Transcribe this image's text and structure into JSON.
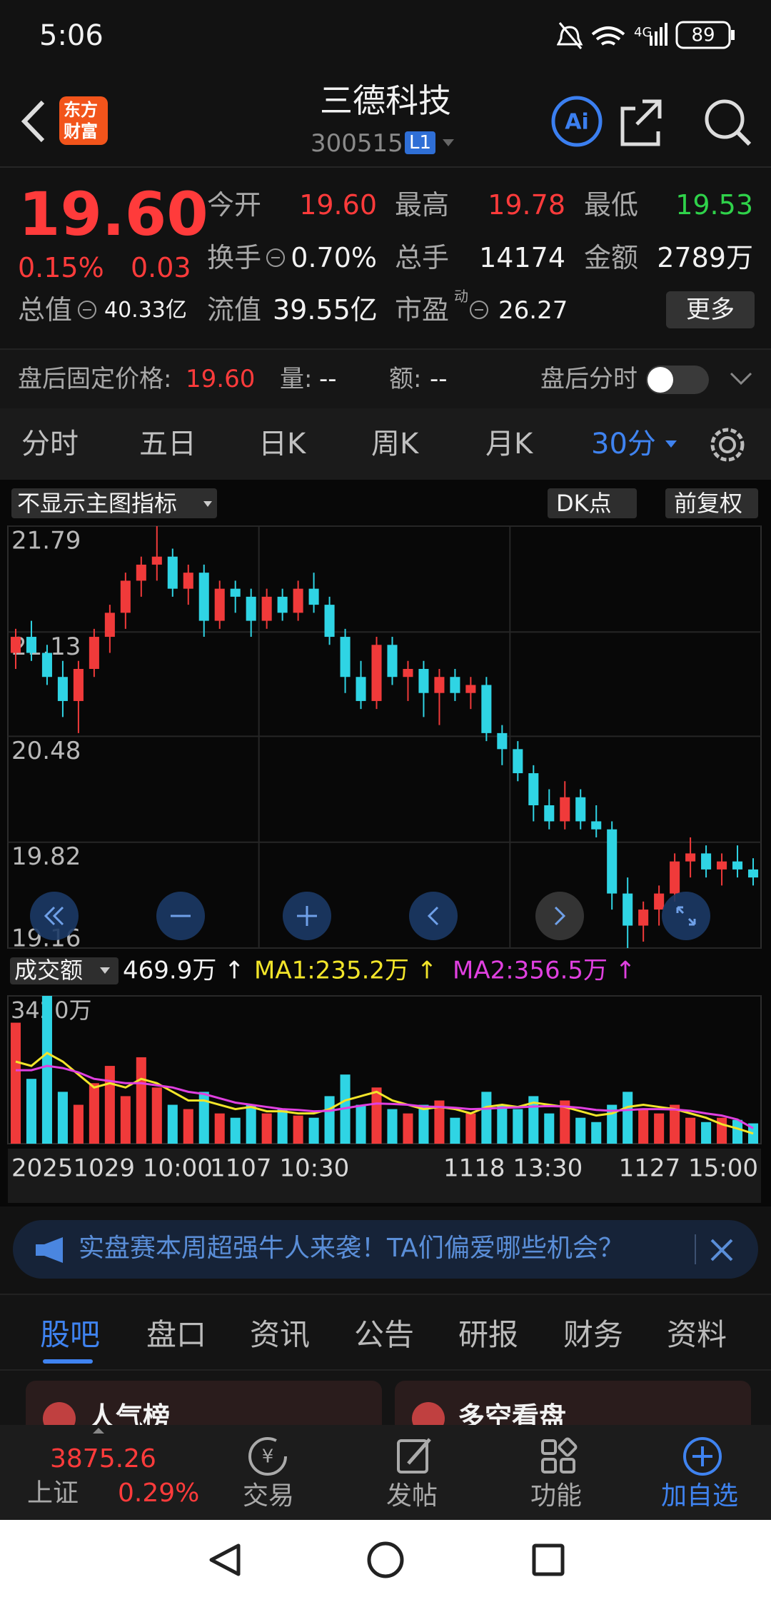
{
  "status": {
    "time": "5:06",
    "network": "4G",
    "battery": "89"
  },
  "header": {
    "logo": [
      "东方",
      "财富"
    ],
    "title": "三德科技",
    "code": "300515",
    "badge": "L1"
  },
  "quote": {
    "price": "19.60",
    "change_pct": "0.15%",
    "change": "0.03",
    "fields": [
      {
        "label": "今开",
        "value": "19.60"
      },
      {
        "label": "最高",
        "value": "19.78"
      },
      {
        "label": "最低",
        "value": "19.53"
      },
      {
        "label": "换手",
        "value": "0.70%"
      },
      {
        "label": "总手",
        "value": "14174"
      },
      {
        "label": "金额",
        "value": "2789万"
      },
      {
        "label": "总值",
        "value": "40.33亿"
      },
      {
        "label": "流值",
        "value": "39.55亿"
      },
      {
        "label": "市盈",
        "value": "26.27"
      }
    ],
    "pe_mark": "动",
    "more": "更多"
  },
  "after_hours": {
    "price_label": "盘后固定价格:",
    "price": "19.60",
    "volume_label": "量:",
    "volume": "--",
    "amount_label": "额:",
    "amount": "--",
    "toggle_label": "盘后分时"
  },
  "periods": {
    "items": [
      "分时",
      "五日",
      "日K",
      "周K",
      "月K"
    ],
    "active": "30分"
  },
  "indicator_buttons": {
    "main": "不显示主图指标",
    "dk": "DK点",
    "adjust": "前复权"
  },
  "chart_data": {
    "type": "candlestick",
    "up_color": "#f03a3a",
    "down_color": "#2fd4e4",
    "ylim": [
      19.16,
      21.79
    ],
    "yticks": [
      21.79,
      21.13,
      20.48,
      19.82,
      19.16
    ],
    "grid": true,
    "x_labels": [
      "20251029 10:00",
      "1107 10:30",
      "1118 13:30",
      "1127 15:00"
    ],
    "candles": [
      [
        21.0,
        21.15,
        20.9,
        21.1
      ],
      [
        21.1,
        21.2,
        20.95,
        21.0
      ],
      [
        21.0,
        21.05,
        20.8,
        20.85
      ],
      [
        20.85,
        20.95,
        20.6,
        20.7
      ],
      [
        20.7,
        20.95,
        20.5,
        20.9
      ],
      [
        20.9,
        21.15,
        20.85,
        21.1
      ],
      [
        21.1,
        21.3,
        21.0,
        21.25
      ],
      [
        21.25,
        21.5,
        21.15,
        21.45
      ],
      [
        21.45,
        21.6,
        21.35,
        21.55
      ],
      [
        21.55,
        21.79,
        21.45,
        21.6
      ],
      [
        21.6,
        21.65,
        21.35,
        21.4
      ],
      [
        21.4,
        21.55,
        21.3,
        21.5
      ],
      [
        21.5,
        21.55,
        21.1,
        21.2
      ],
      [
        21.2,
        21.45,
        21.15,
        21.4
      ],
      [
        21.4,
        21.45,
        21.25,
        21.35
      ],
      [
        21.35,
        21.4,
        21.1,
        21.2
      ],
      [
        21.2,
        21.4,
        21.15,
        21.35
      ],
      [
        21.35,
        21.4,
        21.2,
        21.25
      ],
      [
        21.25,
        21.45,
        21.2,
        21.4
      ],
      [
        21.4,
        21.5,
        21.25,
        21.3
      ],
      [
        21.3,
        21.35,
        21.05,
        21.1
      ],
      [
        21.1,
        21.15,
        20.75,
        20.85
      ],
      [
        20.85,
        20.95,
        20.65,
        20.7
      ],
      [
        20.7,
        21.1,
        20.65,
        21.05
      ],
      [
        21.05,
        21.1,
        20.8,
        20.85
      ],
      [
        20.85,
        20.95,
        20.7,
        20.9
      ],
      [
        20.9,
        20.95,
        20.6,
        20.75
      ],
      [
        20.75,
        20.9,
        20.55,
        20.85
      ],
      [
        20.85,
        20.9,
        20.7,
        20.75
      ],
      [
        20.75,
        20.85,
        20.65,
        20.8
      ],
      [
        20.8,
        20.85,
        20.45,
        20.5
      ],
      [
        20.5,
        20.55,
        20.3,
        20.4
      ],
      [
        20.4,
        20.45,
        20.2,
        20.25
      ],
      [
        20.25,
        20.3,
        19.95,
        20.05
      ],
      [
        20.05,
        20.15,
        19.9,
        19.95
      ],
      [
        19.95,
        20.2,
        19.9,
        20.1
      ],
      [
        20.1,
        20.15,
        19.9,
        19.95
      ],
      [
        19.95,
        20.05,
        19.85,
        19.9
      ],
      [
        19.9,
        19.95,
        19.4,
        19.5
      ],
      [
        19.5,
        19.6,
        19.16,
        19.3
      ],
      [
        19.3,
        19.45,
        19.2,
        19.4
      ],
      [
        19.4,
        19.55,
        19.3,
        19.5
      ],
      [
        19.5,
        19.75,
        19.45,
        19.7
      ],
      [
        19.7,
        19.85,
        19.6,
        19.75
      ],
      [
        19.75,
        19.8,
        19.6,
        19.65
      ],
      [
        19.65,
        19.75,
        19.55,
        19.7
      ],
      [
        19.7,
        19.8,
        19.6,
        19.65
      ],
      [
        19.65,
        19.72,
        19.55,
        19.6
      ]
    ],
    "volume": {
      "label": "成交额",
      "current": "469.9万 ↑",
      "ma1_label": "MA1:235.2万 ↑",
      "ma2_label": "MA2:356.5万 ↑",
      "ma1_color": "#f2e52a",
      "ma2_color": "#e040e0",
      "ylim": [
        0,
        3420
      ],
      "yticks": [
        {
          "value": 3420,
          "label": "3420万"
        }
      ],
      "values": [
        2800,
        1500,
        3420,
        1200,
        900,
        1400,
        1800,
        1100,
        2000,
        1300,
        900,
        800,
        1200,
        700,
        600,
        900,
        700,
        800,
        650,
        600,
        1100,
        1600,
        900,
        1300,
        800,
        700,
        900,
        1000,
        600,
        700,
        1200,
        900,
        800,
        1100,
        700,
        1000,
        600,
        500,
        900,
        1200,
        800,
        700,
        900,
        600,
        500,
        600,
        550,
        469.9
      ],
      "ma1": [
        1900,
        1800,
        2100,
        1900,
        1600,
        1300,
        1400,
        1300,
        1500,
        1400,
        1200,
        1000,
        1000,
        900,
        800,
        850,
        750,
        750,
        700,
        700,
        800,
        1000,
        1100,
        1200,
        1000,
        900,
        800,
        850,
        800,
        700,
        850,
        900,
        850,
        950,
        900,
        850,
        750,
        650,
        700,
        850,
        900,
        850,
        800,
        700,
        600,
        450,
        350,
        235.2
      ],
      "ma2": [
        1700,
        1700,
        1800,
        1750,
        1650,
        1500,
        1450,
        1400,
        1400,
        1350,
        1300,
        1200,
        1150,
        1050,
        950,
        900,
        850,
        800,
        780,
        750,
        760,
        820,
        880,
        930,
        920,
        900,
        860,
        850,
        830,
        800,
        810,
        830,
        840,
        860,
        870,
        860,
        830,
        780,
        760,
        780,
        800,
        800,
        790,
        760,
        700,
        650,
        560,
        356.5
      ]
    }
  },
  "banner": "实盘赛本周超强牛人来袭！TA们偏爱哪些机会？",
  "tabs": {
    "active": "股吧",
    "items": [
      "盘口",
      "资讯",
      "公告",
      "研报",
      "财务",
      "资料"
    ]
  },
  "cards": [
    "人气榜",
    "多空看盘"
  ],
  "bottom_nav": {
    "index_value": "3875.26",
    "index_name": "上证",
    "index_change": "0.29%",
    "items": [
      "交易",
      "发帖",
      "功能"
    ],
    "add": "加自选"
  }
}
